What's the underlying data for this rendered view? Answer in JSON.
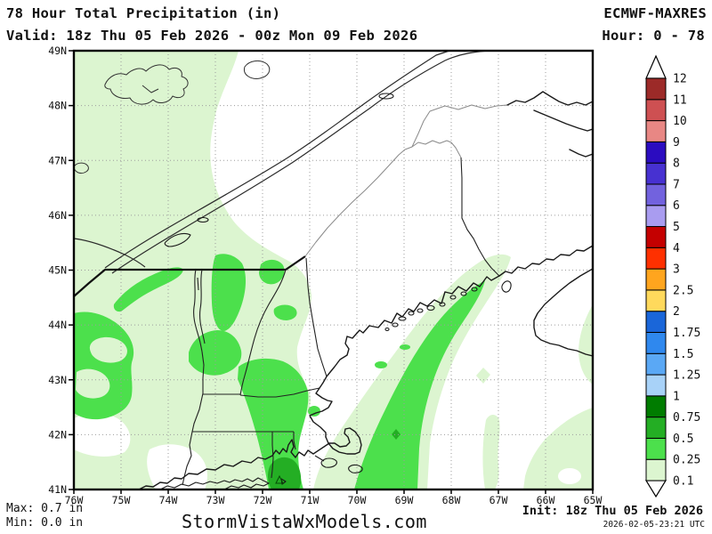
{
  "header": {
    "title": "78 Hour Total Precipitation (in)",
    "model": "ECMWF-MAXRES",
    "valid": "Valid: 18z Thu 05 Feb 2026 - 00z Mon 09 Feb 2026",
    "hour": "Hour: 0 - 78"
  },
  "footer": {
    "max": "Max: 0.7 in",
    "min": "Min: 0.0 in",
    "watermark": "StormVistaWxModels.com",
    "init": "Init: 18z Thu 05 Feb 2026",
    "init_utc": "2026-02-05-23:21 UTC"
  },
  "axes": {
    "lat_labels": [
      "49N",
      "48N",
      "47N",
      "46N",
      "45N",
      "44N",
      "43N",
      "42N",
      "41N"
    ],
    "lon_labels": [
      "76W",
      "75W",
      "74W",
      "73W",
      "72W",
      "71W",
      "70W",
      "69W",
      "68W",
      "67W",
      "66W",
      "65W"
    ]
  },
  "colorbar": {
    "unit": "in",
    "levels": [
      "0.1",
      "0.25",
      "0.5",
      "0.75",
      "1",
      "1.25",
      "1.5",
      "1.75",
      "2",
      "2.5",
      "3",
      "4",
      "5",
      "6",
      "7",
      "8",
      "9",
      "10",
      "11",
      "12"
    ],
    "colors": [
      "#DCF5D0",
      "#4CE04C",
      "#24AE24",
      "#007C00",
      "#A8D2F8",
      "#5AA8F5",
      "#2F88EE",
      "#1A66D9",
      "#FFD95C",
      "#FFA51E",
      "#FE3000",
      "#C40000",
      "#A99CF0",
      "#7262DE",
      "#4731D1",
      "#2B0CC0",
      "#E88784",
      "#CE5052",
      "#9C2A28"
    ]
  },
  "map_colors": {
    "shade_01": "#DCF5D0",
    "shade_025": "#4CE04C",
    "shade_05": "#24AE24",
    "land": "#FFFFFF",
    "grid": "#9D9D9D"
  }
}
